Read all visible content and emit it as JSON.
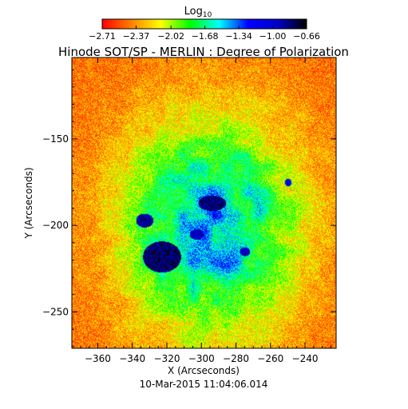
{
  "chart_data": {
    "type": "heatmap",
    "title": "Hinode SOT/SP - MERLIN : Degree of Polarization",
    "xlabel": "X (Arcseconds)",
    "ylabel": "Y (Arcseconds)",
    "footer": "10-Mar-2015 11:04:06.014",
    "xlim": [
      -375,
      -222
    ],
    "ylim": [
      -271,
      -103
    ],
    "x_ticks": [
      -360,
      -340,
      -320,
      -300,
      -280,
      -260,
      -240
    ],
    "y_ticks": [
      -150,
      -200,
      -250
    ],
    "x_tick_labels": [
      "−360",
      "−340",
      "−320",
      "−300",
      "−280",
      "−260",
      "−240"
    ],
    "y_tick_labels": [
      "−150",
      "−200",
      "−250"
    ],
    "colorbar": {
      "label": "Log",
      "label_sub": "10",
      "range": [
        -2.71,
        -0.66
      ],
      "tick_values": [
        -2.71,
        -2.37,
        -2.02,
        -1.68,
        -1.34,
        -1.0,
        -0.66
      ],
      "tick_labels": [
        "−2.71",
        "−2.37",
        "−2.02",
        "−1.68",
        "−1.34",
        "−1.00",
        "−0.66"
      ],
      "colors": [
        "#ff0000",
        "#ff8000",
        "#ffff00",
        "#00ff00",
        "#00ffff",
        "#0000ff",
        "#0000cc",
        "#000000"
      ]
    },
    "features": [
      {
        "name": "sunspot",
        "x": -323,
        "y": -218,
        "rx": 11,
        "ry": 9,
        "value": -0.8
      },
      {
        "name": "pore",
        "x": -333,
        "y": -197,
        "rx": 5,
        "ry": 4,
        "value": -0.9
      },
      {
        "name": "pore",
        "x": -294,
        "y": -187,
        "rx": 8,
        "ry": 4.5,
        "value": -0.85
      },
      {
        "name": "pore",
        "x": -303,
        "y": -205,
        "rx": 4,
        "ry": 3,
        "value": -1.0
      },
      {
        "name": "pore",
        "x": -275,
        "y": -215,
        "rx": 3,
        "ry": 2.5,
        "value": -1.0
      },
      {
        "name": "pore",
        "x": -250,
        "y": -175,
        "rx": 2,
        "ry": 2,
        "value": -1.1
      }
    ]
  }
}
